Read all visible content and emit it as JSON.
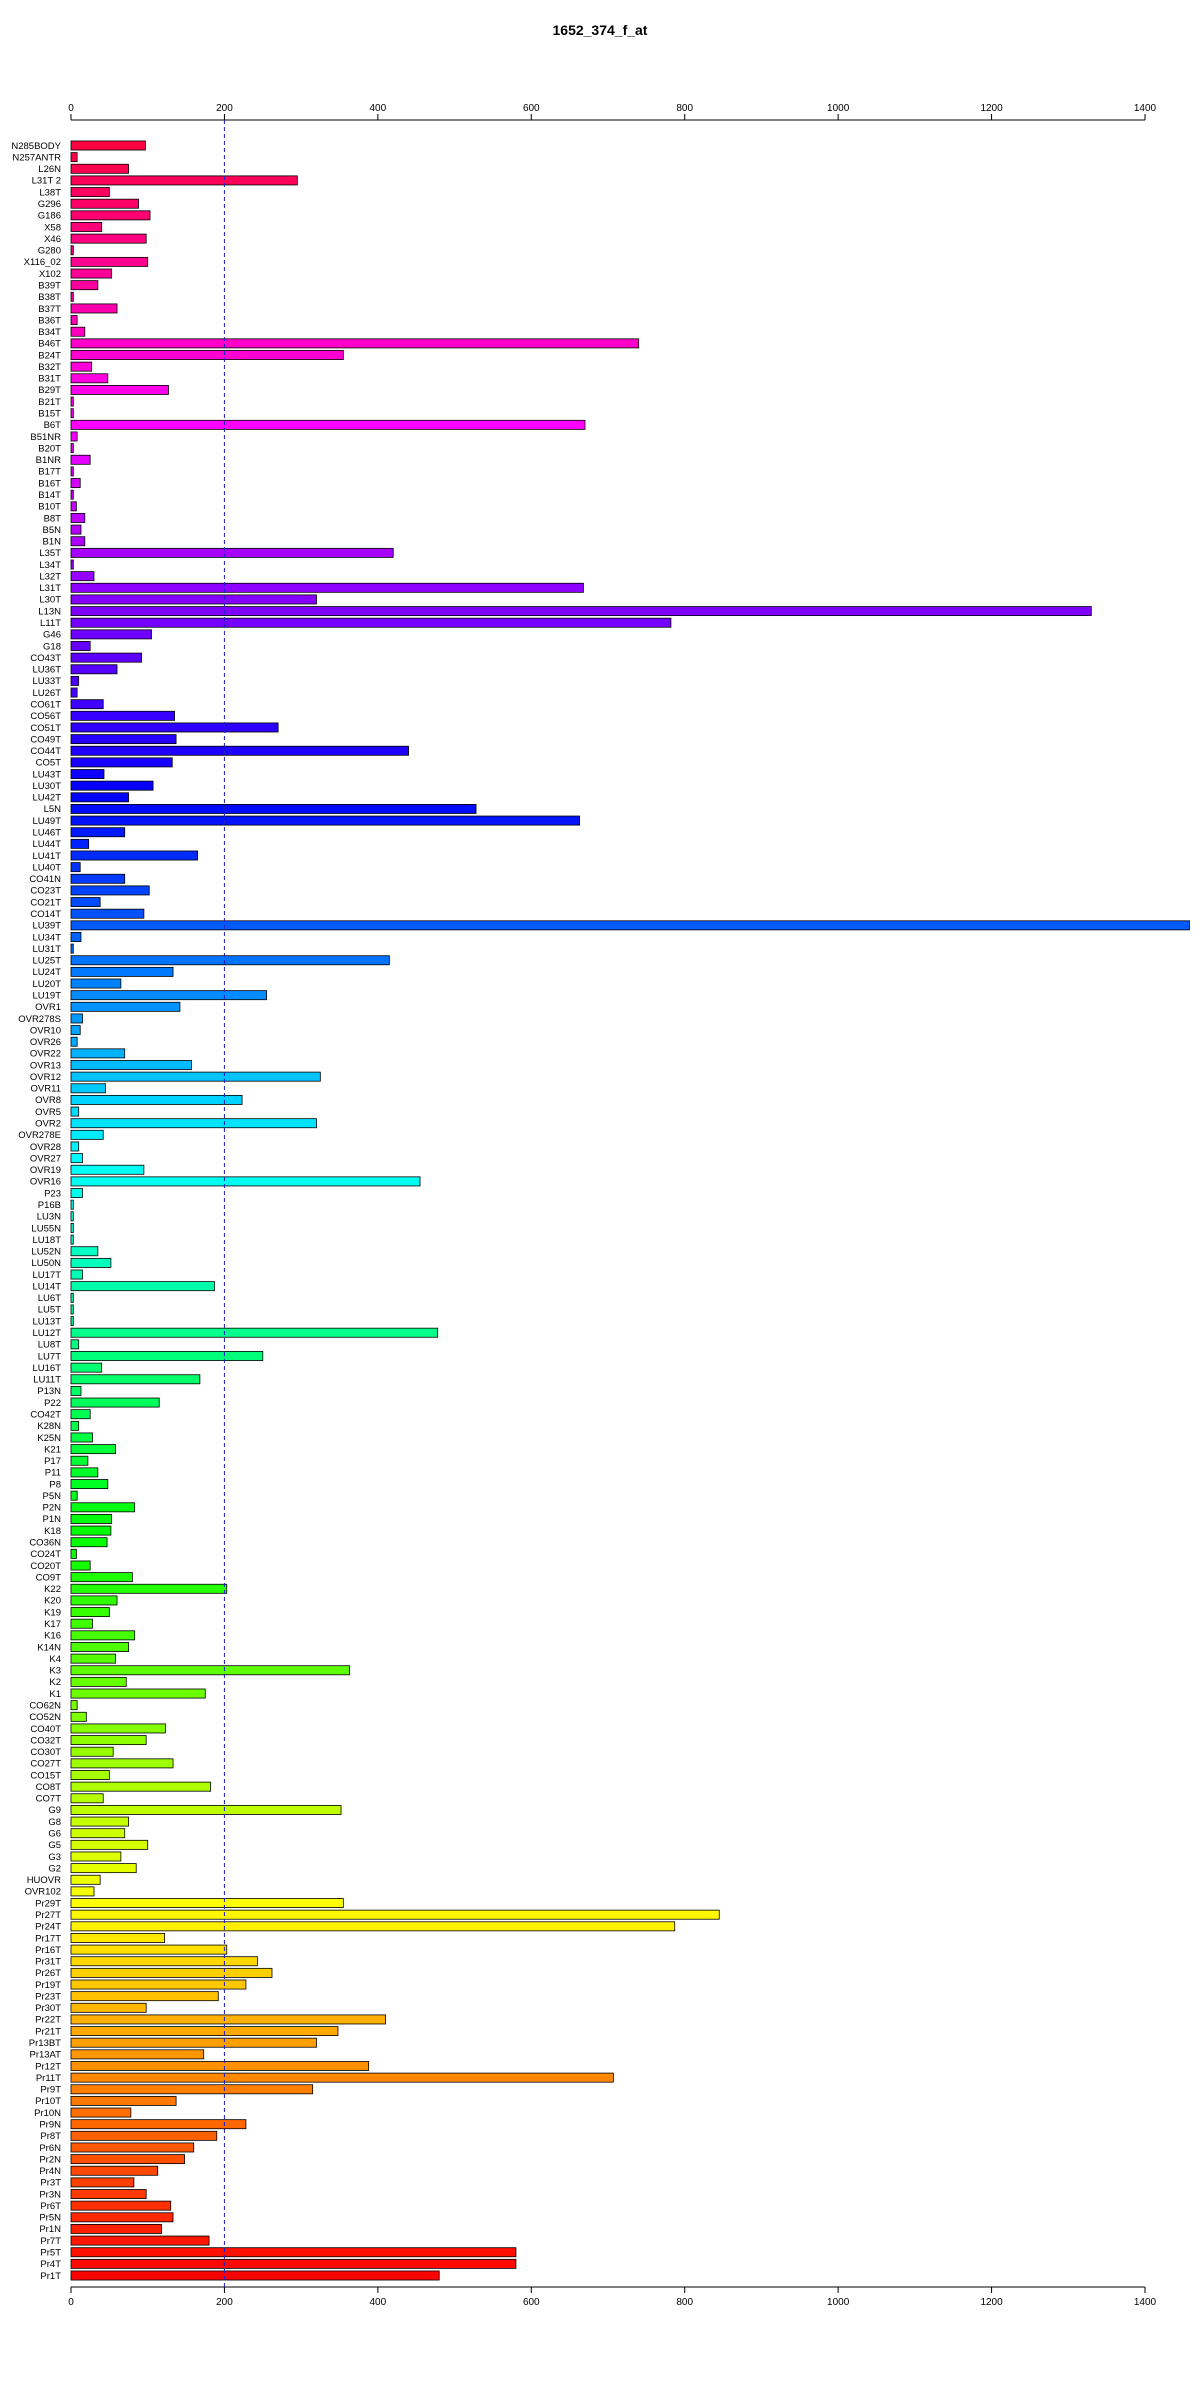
{
  "chart_data": {
    "type": "bar",
    "orientation": "horizontal",
    "title": "1652_374_f_at",
    "xlabel": "",
    "ylabel": "",
    "xlim": [
      0,
      1400
    ],
    "xticks": [
      0,
      200,
      400,
      600,
      800,
      1000,
      1200,
      1400
    ],
    "reference_line": 200,
    "grid": false,
    "legend": "none",
    "categories": [
      "N285BODY",
      "N257ANTR",
      "L26N",
      "L31T 2",
      "L38T",
      "G296",
      "G186",
      "X58",
      "X46",
      "G280",
      "X116_02",
      "X102",
      "B39T",
      "B38T",
      "B37T",
      "B36T",
      "B34T",
      "B46T",
      "B24T",
      "B32T",
      "B31T",
      "B29T",
      "B21T",
      "B15T",
      "B6T",
      "B51NR",
      "B20T",
      "B1NR",
      "B17T",
      "B16T",
      "B14T",
      "B10T",
      "B8T",
      "B5N",
      "B1N",
      "L35T",
      "L34T",
      "L32T",
      "L31T",
      "L30T",
      "L13N",
      "L11T",
      "G46",
      "G18",
      "CO43T",
      "LU36T",
      "LU33T",
      "LU26T",
      "CO61T",
      "CO56T",
      "CO51T",
      "CO49T",
      "CO44T",
      "CO5T",
      "LU43T",
      "LU30T",
      "LU42T",
      "L5N",
      "LU49T",
      "LU46T",
      "LU44T",
      "LU41T",
      "LU40T",
      "CO41N",
      "CO23T",
      "CO21T",
      "CO14T",
      "LU39T",
      "LU34T",
      "LU31T",
      "LU25T",
      "LU24T",
      "LU20T",
      "LU19T",
      "OVR1",
      "OVR278S",
      "OVR10",
      "OVR26",
      "OVR22",
      "OVR13",
      "OVR12",
      "OVR11",
      "OVR8",
      "OVR5",
      "OVR2",
      "OVR278E",
      "OVR28",
      "OVR27",
      "OVR19",
      "OVR16",
      "P23",
      "P16B",
      "LU3N",
      "LU55N",
      "LU18T",
      "LU52N",
      "LU50N",
      "LU17T",
      "LU14T",
      "LU6T",
      "LU5T",
      "LU13T",
      "LU12T",
      "LU8T",
      "LU7T",
      "LU16T",
      "LU11T",
      "P13N",
      "P22",
      "CO42T",
      "K28N",
      "K25N",
      "K21",
      "P17",
      "P11",
      "P8",
      "P5N",
      "P2N",
      "P1N",
      "K18",
      "CO36N",
      "CO24T",
      "CO20T",
      "CO9T",
      "K22",
      "K20",
      "K19",
      "K17",
      "K16",
      "K14N",
      "K4",
      "K3",
      "K2",
      "K1",
      "CO62N",
      "CO52N",
      "CO40T",
      "CO32T",
      "CO30T",
      "CO27T",
      "CO15T",
      "CO8T",
      "CO7T",
      "G9",
      "G8",
      "G6",
      "G5",
      "G3",
      "G2",
      "HUOVR",
      "OVR102",
      "Pr29T",
      "Pr27T",
      "Pr24T",
      "Pr17T",
      "Pr16T",
      "Pr31T",
      "Pr26T",
      "Pr19T",
      "Pr23T",
      "Pr30T",
      "Pr22T",
      "Pr21T",
      "Pr13BT",
      "Pr13AT",
      "Pr12T",
      "Pr11T",
      "Pr9T",
      "Pr10T",
      "Pr10N",
      "Pr9N",
      "Pr8T",
      "Pr6N",
      "Pr2N",
      "Pr4N",
      "Pr3T",
      "Pr3N",
      "Pr6T",
      "Pr5N",
      "Pr1N",
      "Pr7T",
      "Pr5T",
      "Pr4T",
      "Pr1T"
    ],
    "values": [
      97,
      8,
      75,
      295,
      50,
      88,
      103,
      40,
      98,
      3,
      100,
      53,
      35,
      3,
      60,
      8,
      18,
      740,
      355,
      27,
      48,
      127,
      3,
      3,
      670,
      8,
      3,
      25,
      3,
      12,
      3,
      7,
      18,
      13,
      18,
      420,
      3,
      30,
      668,
      320,
      1330,
      782,
      105,
      25,
      92,
      60,
      10,
      8,
      42,
      135,
      270,
      137,
      440,
      132,
      43,
      107,
      75,
      528,
      663,
      70,
      23,
      165,
      12,
      70,
      102,
      38,
      95,
      1458,
      13,
      3,
      415,
      133,
      65,
      255,
      142,
      15,
      12,
      8,
      70,
      157,
      325,
      45,
      223,
      10,
      320,
      42,
      10,
      15,
      95,
      455,
      15,
      3,
      3,
      3,
      3,
      35,
      52,
      15,
      187,
      3,
      3,
      3,
      478,
      10,
      250,
      40,
      168,
      13,
      115,
      25,
      10,
      28,
      58,
      22,
      35,
      48,
      8,
      83,
      53,
      52,
      47,
      7,
      25,
      80,
      203,
      60,
      50,
      28,
      83,
      75,
      58,
      363,
      72,
      175,
      8,
      20,
      123,
      98,
      55,
      133,
      50,
      182,
      42,
      352,
      75,
      70,
      100,
      65,
      85,
      38,
      30,
      355,
      845,
      787,
      122,
      203,
      243,
      262,
      228,
      192,
      98,
      410,
      348,
      320,
      173,
      388,
      707,
      315,
      137,
      78,
      228,
      190,
      160,
      148,
      113,
      82,
      98,
      130,
      133,
      118,
      180,
      580,
      580,
      480
    ],
    "colors": [
      "#ff0000",
      "#ff0013",
      "#ff0027",
      "#ff003a",
      "#ff004e",
      "#ff0062",
      "#ff0075",
      "#ff0089",
      "#ff009d",
      "#ff00b0",
      "#ff00c4",
      "#ff00d8",
      "#ff00eb",
      "#ff00ff",
      "#ff00ff"
    ]
  }
}
